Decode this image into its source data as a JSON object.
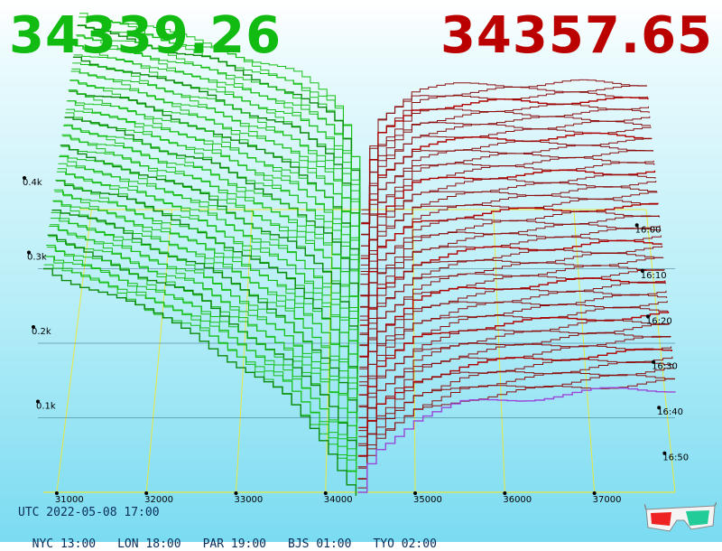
{
  "bid_price": {
    "value": "34339.26",
    "color": "#11bb11"
  },
  "ask_price": {
    "value": "34357.65",
    "color": "#bb0000"
  },
  "time_info": {
    "utc": "UTC 2022-05-08 17:00",
    "cities": [
      "NYC 13:00",
      "LON 18:00",
      "PAR 19:00",
      "BJS 01:00",
      "TYO 02:00"
    ]
  },
  "icons": {
    "three_d_glasses": "anaglyph-3d-glasses-icon"
  },
  "colors": {
    "bid": "#16c016",
    "bid_dark": "#0a8c0a",
    "ask": "#8c1010",
    "ask_dark": "#b00000",
    "grid": "#e8e840",
    "latest": "#9a48d8"
  },
  "chart_data": {
    "type": "3d-depth-chart",
    "title": "",
    "x_axis": {
      "ticks": [
        31000,
        32000,
        33000,
        34000,
        35000,
        36000,
        37000
      ],
      "range": [
        30850,
        37900
      ]
    },
    "y_axis": {
      "ticks": [
        "0.1k",
        "0.2k",
        "0.3k",
        "0.4k"
      ],
      "range": [
        0,
        400
      ]
    },
    "time_axis": {
      "ticks": [
        "16:00",
        "16:10",
        "16:20",
        "16:30",
        "16:40",
        "16:50"
      ]
    },
    "bid_depth_front": {
      "price": [
        30850,
        31000,
        31500,
        32000,
        32500,
        33000,
        33500,
        34000,
        34200,
        34339
      ],
      "cumulative": [
        300,
        290,
        270,
        240,
        215,
        170,
        130,
        60,
        20,
        0
      ]
    },
    "bid_depth_back": {
      "price": [
        30850,
        31000,
        31500,
        32000,
        32500,
        33000,
        33500,
        34000,
        34200,
        34339
      ],
      "cumulative": [
        310,
        305,
        295,
        275,
        260,
        235,
        215,
        175,
        120,
        0
      ]
    },
    "ask_depth_front": {
      "price": [
        34358,
        34500,
        35000,
        35500,
        36000,
        36500,
        37000,
        37500,
        37900
      ],
      "cumulative": [
        0,
        55,
        100,
        118,
        125,
        130,
        135,
        138,
        140
      ]
    },
    "ask_depth_back": {
      "price": [
        34358,
        34500,
        35000,
        35500,
        36000,
        36500,
        37000,
        37500,
        37900
      ],
      "cumulative": [
        0,
        140,
        190,
        195,
        198,
        198,
        200,
        200,
        200
      ]
    }
  }
}
